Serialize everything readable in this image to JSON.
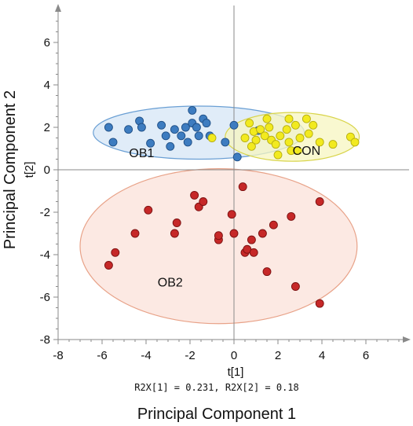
{
  "chart_data": {
    "type": "scatter",
    "title": "",
    "xlabel": "Principal Component 1",
    "ylabel": "Principal Component 2",
    "x_axis_label": "t[1]",
    "y_axis_label": "t[2]",
    "variance_note": "R2X[1] = 0.231, R2X[2] = 0.18",
    "xlim": [
      -8,
      8
    ],
    "ylim": [
      -8,
      8
    ],
    "x_ticks": [
      "-8",
      "-6",
      "-4",
      "-2",
      "0",
      "2",
      "4",
      "6"
    ],
    "y_ticks": [
      "-8",
      "-6",
      "-4",
      "-2",
      "0",
      "2",
      "4",
      "6"
    ],
    "grid": false,
    "series": [
      {
        "name": "OB1",
        "color": "#3d7cc0",
        "ellipse": {
          "center": [
            -1.6,
            1.75
          ],
          "radii": [
            4.8,
            1.25
          ],
          "fill": "#d6e6f5",
          "stroke": "#6a9fd4"
        },
        "points": [
          [
            -5.7,
            2.0
          ],
          [
            -5.5,
            1.3
          ],
          [
            -4.8,
            1.9
          ],
          [
            -4.3,
            2.3
          ],
          [
            -4.2,
            2.0
          ],
          [
            -3.8,
            1.25
          ],
          [
            -3.3,
            2.1
          ],
          [
            -3.1,
            1.6
          ],
          [
            -2.9,
            1.1
          ],
          [
            -2.7,
            1.9
          ],
          [
            -2.4,
            1.6
          ],
          [
            -2.2,
            2.0
          ],
          [
            -2.1,
            1.3
          ],
          [
            -1.9,
            2.2
          ],
          [
            -1.9,
            2.8
          ],
          [
            -1.7,
            2.0
          ],
          [
            -1.6,
            1.6
          ],
          [
            -1.4,
            2.4
          ],
          [
            -1.25,
            2.2
          ],
          [
            -1.1,
            1.6
          ],
          [
            -0.4,
            1.3
          ],
          [
            0.0,
            2.1
          ],
          [
            0.15,
            0.6
          ],
          [
            1.1,
            1.85
          ]
        ]
      },
      {
        "name": "CON",
        "color": "#f2ea1f",
        "ellipse": {
          "center": [
            2.65,
            1.55
          ],
          "radii": [
            3.05,
            1.15
          ],
          "fill": "#f7f5c0",
          "stroke": "#d8d44a"
        },
        "points": [
          [
            -1.0,
            1.5
          ],
          [
            0.5,
            1.5
          ],
          [
            0.7,
            2.2
          ],
          [
            0.8,
            1.1
          ],
          [
            0.9,
            1.8
          ],
          [
            1.0,
            1.4
          ],
          [
            1.2,
            1.9
          ],
          [
            1.4,
            1.6
          ],
          [
            1.5,
            2.4
          ],
          [
            1.6,
            2.0
          ],
          [
            1.7,
            1.4
          ],
          [
            1.9,
            1.2
          ],
          [
            2.0,
            0.7
          ],
          [
            2.1,
            1.6
          ],
          [
            2.4,
            1.9
          ],
          [
            2.5,
            1.3
          ],
          [
            2.6,
            0.9
          ],
          [
            2.8,
            2.1
          ],
          [
            2.9,
            0.9
          ],
          [
            3.0,
            1.5
          ],
          [
            3.3,
            2.4
          ],
          [
            3.4,
            1.7
          ],
          [
            3.6,
            2.1
          ],
          [
            3.9,
            1.3
          ],
          [
            4.5,
            1.2
          ],
          [
            5.3,
            1.55
          ],
          [
            5.5,
            1.3
          ],
          [
            2.5,
            2.4
          ]
        ]
      },
      {
        "name": "OB2",
        "color": "#c62828",
        "ellipse": {
          "center": [
            -0.7,
            -3.6
          ],
          "radii": [
            6.3,
            3.65
          ],
          "fill": "#fbe2da",
          "stroke": "#e8a288"
        },
        "points": [
          [
            -5.7,
            -4.5
          ],
          [
            -5.4,
            -3.9
          ],
          [
            -4.5,
            -3.0
          ],
          [
            -3.9,
            -1.9
          ],
          [
            -2.7,
            -3.0
          ],
          [
            -2.6,
            -2.5
          ],
          [
            -1.8,
            -1.2
          ],
          [
            -1.6,
            -1.75
          ],
          [
            -1.4,
            -1.5
          ],
          [
            -0.7,
            -3.3
          ],
          [
            -0.7,
            -3.1
          ],
          [
            -0.1,
            -2.1
          ],
          [
            0.0,
            -3.0
          ],
          [
            0.4,
            -0.8
          ],
          [
            0.5,
            -3.9
          ],
          [
            0.6,
            -3.75
          ],
          [
            0.8,
            -3.3
          ],
          [
            0.9,
            -3.9
          ],
          [
            1.3,
            -3.0
          ],
          [
            1.5,
            -4.8
          ],
          [
            1.8,
            -2.6
          ],
          [
            2.6,
            -2.2
          ],
          [
            2.8,
            -5.5
          ],
          [
            3.9,
            -1.5
          ],
          [
            3.9,
            -6.3
          ]
        ]
      }
    ],
    "group_labels": [
      {
        "text": "OB1",
        "x": -4.2,
        "y": 0.6
      },
      {
        "text": "CON",
        "x": 3.3,
        "y": 0.7
      },
      {
        "text": "OB2",
        "x": -2.9,
        "y": -5.5
      }
    ]
  }
}
